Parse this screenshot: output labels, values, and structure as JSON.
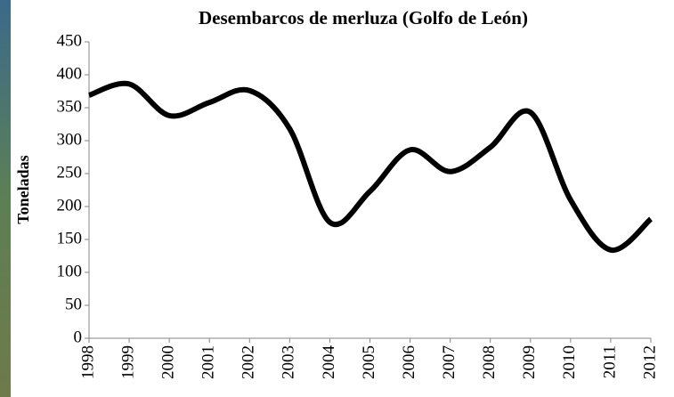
{
  "chart_data": {
    "type": "line",
    "title": "Desembarcos de merluza (Golfo de León)",
    "y_label": "Toneladas",
    "categories": [
      "1998",
      "1999",
      "2000",
      "2001",
      "2002",
      "2003",
      "2004",
      "2005",
      "2006",
      "2007",
      "2008",
      "2009",
      "2010",
      "2011",
      "2012"
    ],
    "values": [
      369,
      386,
      338,
      358,
      376,
      318,
      176,
      223,
      286,
      253,
      290,
      343,
      210,
      134,
      181
    ],
    "color": "#000000",
    "smooth": true,
    "ylim": [
      0,
      450
    ],
    "yticks": [
      0,
      50,
      100,
      150,
      200,
      250,
      300,
      350,
      400,
      450
    ],
    "grid": false
  }
}
